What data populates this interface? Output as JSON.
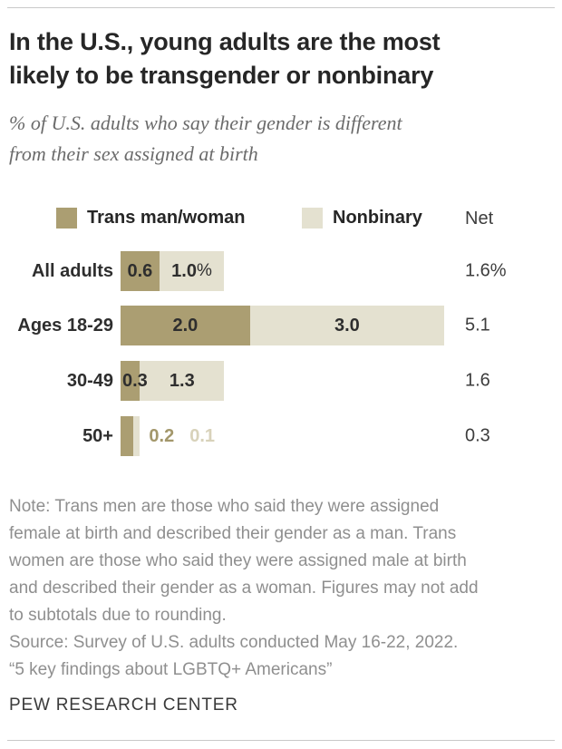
{
  "header": {
    "title": "In the U.S., young adults are the most\nlikely to be transgender or nonbinary",
    "subtitle": "% of U.S. adults who say their gender is different\nfrom their sex assigned at birth"
  },
  "legend": {
    "series1_label": "Trans man/woman",
    "series2_label": "Nonbinary",
    "net_label": "Net"
  },
  "chart_data": {
    "type": "bar",
    "orientation": "horizontal",
    "stacked": true,
    "title": "In the U.S., young adults are the most likely to be transgender or nonbinary",
    "subtitle": "% of U.S. adults who say their gender is different from their sex assigned at birth",
    "categories": [
      "All adults",
      "Ages 18-29",
      "30-49",
      "50+"
    ],
    "series": [
      {
        "name": "Trans man/woman",
        "color": "#ab9e72",
        "values": [
          0.6,
          2.0,
          0.3,
          0.2
        ]
      },
      {
        "name": "Nonbinary",
        "color": "#e4e1d0",
        "values": [
          1.0,
          3.0,
          1.3,
          0.1
        ]
      }
    ],
    "value_labels": [
      [
        "0.6",
        "1.0%"
      ],
      [
        "2.0",
        "3.0"
      ],
      [
        "0.3",
        "1.3"
      ],
      [
        "0.2",
        "0.1"
      ]
    ],
    "net_column": {
      "header": "Net",
      "values": [
        "1.6%",
        "5.1",
        "1.6",
        "0.3"
      ]
    },
    "xlim": [
      0,
      5.1
    ],
    "grid": false,
    "axis_ticks": "none",
    "legend_position": "top"
  },
  "rows": [
    {
      "category": "All adults",
      "dark_label": "0.6",
      "light_label": "1.0",
      "light_suffix": "%",
      "net": "1.6%"
    },
    {
      "category": "Ages 18-29",
      "dark_label": "2.0",
      "light_label": "3.0",
      "net": "5.1"
    },
    {
      "category": "30-49",
      "dark_label": "0.3",
      "light_label": "1.3",
      "net": "1.6"
    },
    {
      "category": "50+",
      "dark_label": "0.2",
      "light_label": "0.1",
      "net": "0.3"
    }
  ],
  "footer": {
    "note": "Note: Trans men are those who said they were assigned\nfemale at birth and described their gender as a man. Trans\nwomen are those who said they were assigned male at birth\nand described their gender as a woman. Figures may not add\nto subtotals due to rounding.",
    "source": "Source: Survey of U.S. adults conducted May 16-22, 2022.\n“5 key findings about LGBTQ+ Americans”",
    "brand": "PEW RESEARCH CENTER"
  },
  "colors": {
    "trans": "#ab9e72",
    "nonbinary": "#e4e1d0",
    "outside_dark_text": "#a3976b",
    "outside_light_text": "#d8d2ba",
    "rule": "#c9c9c9"
  }
}
